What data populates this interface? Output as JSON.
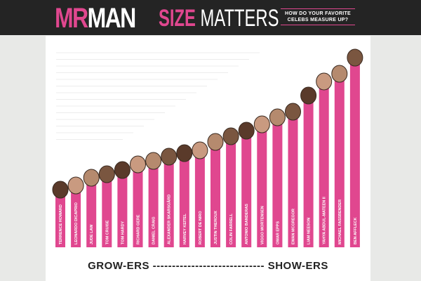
{
  "header": {
    "logo_part1": "MR",
    "logo_part2": "MAN",
    "title_part1": "SIZE",
    "title_part2": "MATTERS",
    "subtitle_line1": "HOW DO YOUR FAVORITE",
    "subtitle_line2": "CELEBS MEASURE UP?"
  },
  "colors": {
    "accent": "#e0478f",
    "header_bg": "#242424",
    "page_bg": "#e8e9e7"
  },
  "chart_data": {
    "type": "bar",
    "title": "SIZE MATTERS",
    "categories": [
      "TERRENCE HOWARD",
      "LEONARDO DICAPRIO",
      "JUDE LAW",
      "TOM CRUISE",
      "TOM HARDY",
      "RICHARD GERE",
      "DANIEL CRAIG",
      "ALEXANDER SKARSGÅRD",
      "HARVEY KEITEL",
      "ROBERT DE NIRO",
      "JUSTIN THEROUX",
      "COLIN FARRELL",
      "ANTONIO BANDERAS",
      "VIGGO MORTENSEN",
      "OMAR EPPS",
      "EWAN MCGREGOR",
      "LIAM NEESON",
      "YAHYA ABDUL-MATEEN II",
      "MICHAEL FASSBENDER",
      "BEN AFFLECK"
    ],
    "values": [
      94,
      100,
      111,
      116,
      122,
      130,
      135,
      141,
      146,
      150,
      162,
      170,
      178,
      187,
      197,
      205,
      228,
      248,
      259,
      282
    ],
    "ylim": [
      0,
      300
    ],
    "xlabel_left": "GROW-ERS",
    "xlabel_dashes": "-----------------------------",
    "xlabel_right": "SHOW-ERS"
  }
}
